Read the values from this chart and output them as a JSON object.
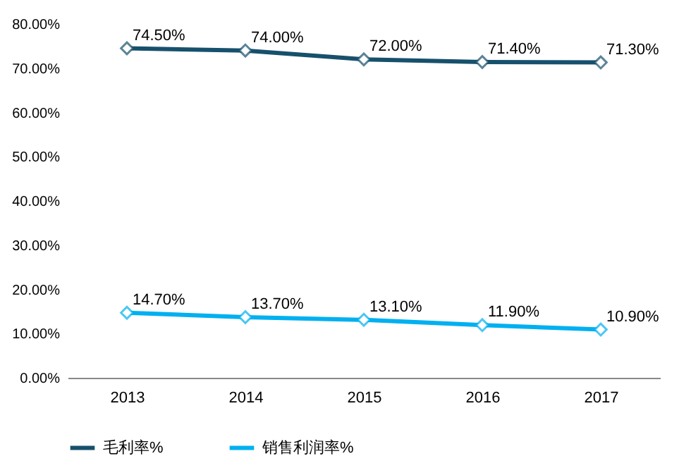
{
  "chart_data": {
    "type": "line",
    "categories": [
      "2013",
      "2014",
      "2015",
      "2016",
      "2017"
    ],
    "series": [
      {
        "name": "毛利率%",
        "color": "#17506c",
        "values": [
          74.5,
          74.0,
          72.0,
          71.4,
          71.3
        ],
        "value_labels": [
          "74.50%",
          "74.00%",
          "72.00%",
          "71.40%",
          "71.30%"
        ]
      },
      {
        "name": "销售利润率%",
        "color": "#00b0f0",
        "values": [
          14.7,
          13.7,
          13.1,
          11.9,
          10.9
        ],
        "value_labels": [
          "14.70%",
          "13.70%",
          "13.10%",
          "11.90%",
          "10.90%"
        ]
      }
    ],
    "ylim": [
      0,
      80
    ],
    "yticks": [
      {
        "value": 0,
        "label": "0.00%"
      },
      {
        "value": 10,
        "label": "10.00%"
      },
      {
        "value": 20,
        "label": "20.00%"
      },
      {
        "value": 30,
        "label": "30.00%"
      },
      {
        "value": 40,
        "label": "40.00%"
      },
      {
        "value": 50,
        "label": "50.00%"
      },
      {
        "value": 60,
        "label": "60.00%"
      },
      {
        "value": 70,
        "label": "70.00%"
      },
      {
        "value": 80,
        "label": "80.00%"
      }
    ],
    "legend": "bottom",
    "marker": "diamond",
    "line_style": "solid",
    "grid": false
  }
}
